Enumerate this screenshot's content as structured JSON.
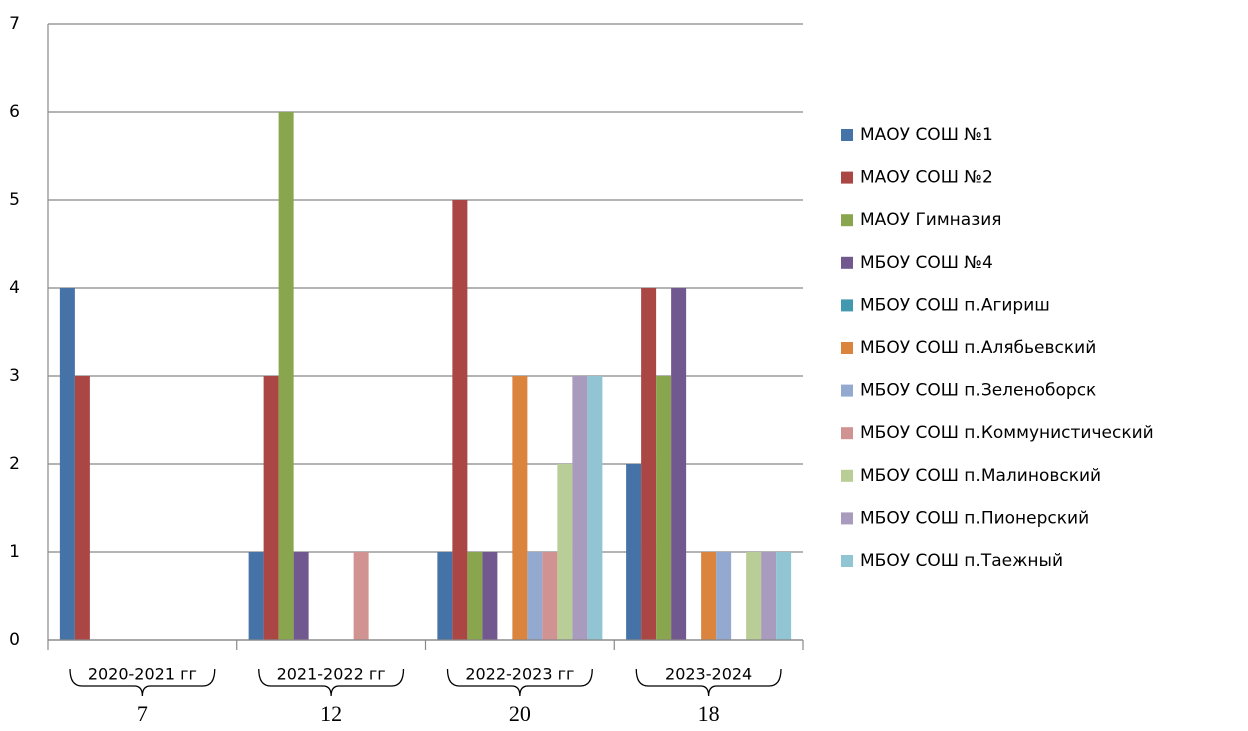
{
  "chart_data": {
    "type": "bar",
    "categories": [
      "2020-2021 гг",
      "2021-2022 гг",
      "2022-2023 гг",
      "2023-2024"
    ],
    "totals": [
      "7",
      "12",
      "20",
      "18"
    ],
    "series": [
      {
        "name": "МАОУ СОШ №1",
        "color": "#4572a7",
        "values": [
          4,
          1,
          1,
          2
        ]
      },
      {
        "name": "МАОУ СОШ №2",
        "color": "#aa4643",
        "values": [
          3,
          3,
          5,
          4
        ]
      },
      {
        "name": "МАОУ Гимназия",
        "color": "#89a54e",
        "values": [
          0,
          6,
          1,
          3
        ]
      },
      {
        "name": "МБОУ СОШ №4",
        "color": "#71588f",
        "values": [
          0,
          1,
          1,
          4
        ]
      },
      {
        "name": "МБОУ СОШ п.Агириш",
        "color": "#4198af",
        "values": [
          0,
          0,
          0,
          0
        ]
      },
      {
        "name": "МБОУ СОШ п.Алябьевский",
        "color": "#db843d",
        "values": [
          0,
          0,
          3,
          1
        ]
      },
      {
        "name": "МБОУ СОШ п.Зеленоборск",
        "color": "#93a9cf",
        "values": [
          0,
          0,
          1,
          1
        ]
      },
      {
        "name": "МБОУ СОШ п.Коммунистический",
        "color": "#d19392",
        "values": [
          0,
          1,
          1,
          0
        ]
      },
      {
        "name": "МБОУ СОШ п.Малиновский",
        "color": "#b9cd96",
        "values": [
          0,
          0,
          2,
          1
        ]
      },
      {
        "name": "МБОУ СОШ п.Пионерский",
        "color": "#a99bbd",
        "values": [
          0,
          0,
          3,
          1
        ]
      },
      {
        "name": "МБОУ СОШ п.Таежный",
        "color": "#92c5d4",
        "values": [
          0,
          0,
          3,
          1
        ]
      }
    ],
    "ylim": [
      0,
      7
    ],
    "yticks": [
      0,
      1,
      2,
      3,
      4,
      5,
      6,
      7
    ],
    "grid": true,
    "legend": "right"
  }
}
